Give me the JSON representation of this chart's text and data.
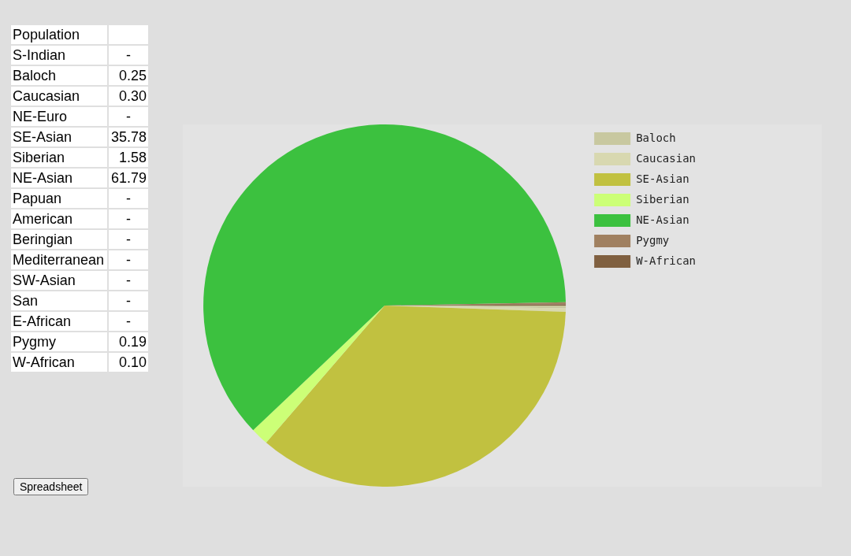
{
  "chart_data": [
    {
      "type": "other",
      "annotations": [
        "Population",
        "Spreadsheet"
      ],
      "categories": [
        "S-Indian",
        "Baloch",
        "Caucasian",
        "NE-Euro",
        "SE-Asian",
        "Siberian",
        "NE-Asian",
        "Papuan",
        "American",
        "Beringian",
        "Mediterranean",
        "SW-Asian",
        "San",
        "E-African",
        "Pygmy",
        "W-African"
      ],
      "value_labels": [
        "-",
        "0.25",
        "0.30",
        "-",
        "35.78",
        "1.58",
        "61.79",
        "-",
        "-",
        "-",
        "-",
        "-",
        "-",
        "-",
        "0.19",
        "0.10"
      ]
    },
    {
      "type": "pie",
      "categories": [
        "Baloch",
        "Caucasian",
        "SE-Asian",
        "Siberian",
        "NE-Asian",
        "Pygmy",
        "W-African"
      ],
      "values": [
        0.25,
        0.3,
        35.78,
        1.58,
        61.79,
        0.19,
        0.1
      ],
      "colors": [
        "#c8c8a0",
        "#d8d8b0",
        "#c1c140",
        "#ccff77",
        "#3cc13f",
        "#a08060",
        "#806040"
      ],
      "legend": "right"
    }
  ]
}
